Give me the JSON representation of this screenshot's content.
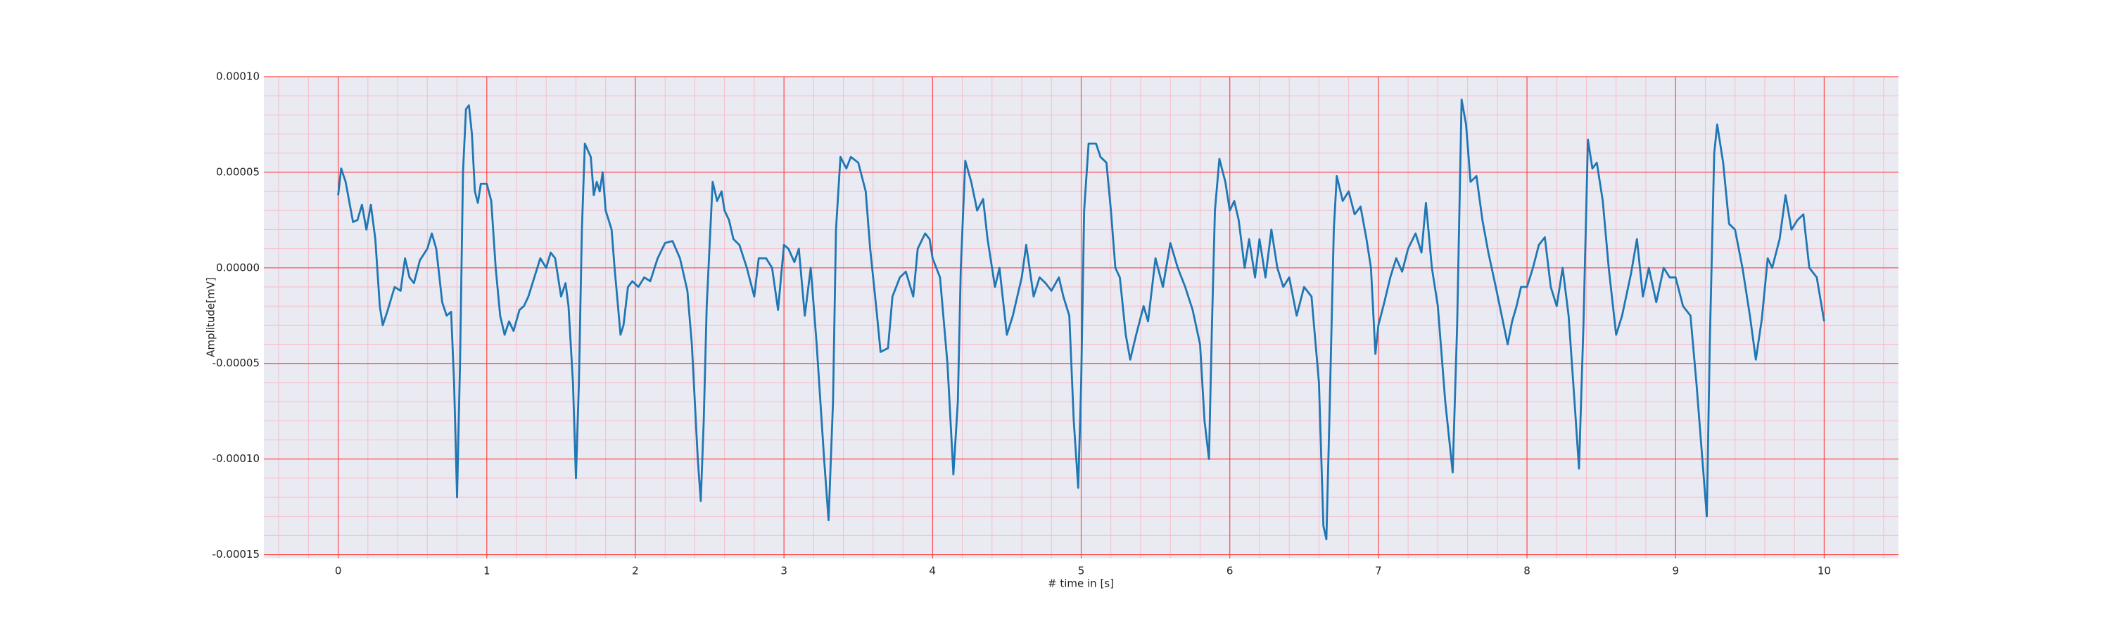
{
  "chart_data": {
    "type": "line",
    "xlabel": "# time in [s]",
    "ylabel": "Amplitude[mV]",
    "xlim": [
      -0.5,
      10.5
    ],
    "ylim": [
      -0.000152,
      0.0001
    ],
    "xticks": [
      0,
      1,
      2,
      3,
      4,
      5,
      6,
      7,
      8,
      9,
      10
    ],
    "yticks": [
      {
        "value": 0.0001,
        "label": "0.00010"
      },
      {
        "value": 5e-05,
        "label": "0.00005"
      },
      {
        "value": 0,
        "label": "0.00000"
      },
      {
        "value": -5e-05,
        "label": "-0.00005"
      },
      {
        "value": -0.0001,
        "label": "-0.00010"
      },
      {
        "value": -0.00015,
        "label": "-0.00015"
      }
    ],
    "grid": true,
    "grid_color": "#ff4a4a",
    "minor_grid": true,
    "minor_grid_color": "#f7bcc8",
    "minor_per_major": 5,
    "background": "#eaeaf2",
    "series": [
      {
        "color": "#1f77b4",
        "x": [
          0,
          0.02,
          0.05,
          0.1,
          0.13,
          0.16,
          0.19,
          0.22,
          0.25,
          0.28,
          0.3,
          0.33,
          0.38,
          0.42,
          0.45,
          0.48,
          0.51,
          0.55,
          0.6,
          0.63,
          0.66,
          0.7,
          0.73,
          0.76,
          0.78,
          0.8,
          0.82,
          0.84,
          0.86,
          0.88,
          0.9,
          0.92,
          0.94,
          0.96,
          1.0,
          1.03,
          1.06,
          1.09,
          1.12,
          1.15,
          1.18,
          1.22,
          1.25,
          1.28,
          1.32,
          1.36,
          1.4,
          1.43,
          1.46,
          1.5,
          1.53,
          1.55,
          1.58,
          1.6,
          1.62,
          1.64,
          1.66,
          1.7,
          1.72,
          1.74,
          1.76,
          1.78,
          1.8,
          1.84,
          1.86,
          1.9,
          1.92,
          1.95,
          1.98,
          2.02,
          2.06,
          2.1,
          2.15,
          2.2,
          2.25,
          2.3,
          2.35,
          2.38,
          2.42,
          2.44,
          2.46,
          2.48,
          2.52,
          2.55,
          2.58,
          2.6,
          2.63,
          2.66,
          2.7,
          2.75,
          2.8,
          2.83,
          2.88,
          2.92,
          2.96,
          3.0,
          3.03,
          3.07,
          3.1,
          3.14,
          3.18,
          3.22,
          3.27,
          3.3,
          3.33,
          3.35,
          3.38,
          3.42,
          3.45,
          3.5,
          3.55,
          3.58,
          3.62,
          3.65,
          3.7,
          3.73,
          3.78,
          3.82,
          3.87,
          3.9,
          3.95,
          3.98,
          4.0,
          4.05,
          4.1,
          4.14,
          4.17,
          4.19,
          4.22,
          4.26,
          4.3,
          4.34,
          4.37,
          4.42,
          4.45,
          4.5,
          4.54,
          4.6,
          4.63,
          4.68,
          4.72,
          4.76,
          4.8,
          4.85,
          4.88,
          4.92,
          4.95,
          4.98,
          5.0,
          5.02,
          5.05,
          5.1,
          5.13,
          5.17,
          5.2,
          5.23,
          5.26,
          5.3,
          5.33,
          5.37,
          5.42,
          5.45,
          5.5,
          5.55,
          5.6,
          5.65,
          5.7,
          5.75,
          5.8,
          5.83,
          5.86,
          5.88,
          5.9,
          5.93,
          5.97,
          6.0,
          6.03,
          6.06,
          6.1,
          6.13,
          6.17,
          6.2,
          6.24,
          6.28,
          6.32,
          6.36,
          6.4,
          6.45,
          6.5,
          6.55,
          6.6,
          6.63,
          6.65,
          6.67,
          6.7,
          6.72,
          6.76,
          6.8,
          6.84,
          6.88,
          6.92,
          6.95,
          6.98,
          7.0,
          7.04,
          7.08,
          7.12,
          7.16,
          7.2,
          7.25,
          7.29,
          7.32,
          7.36,
          7.4,
          7.45,
          7.5,
          7.53,
          7.56,
          7.59,
          7.62,
          7.66,
          7.7,
          7.74,
          7.79,
          7.83,
          7.87,
          7.9,
          7.93,
          7.96,
          8.0,
          8.04,
          8.08,
          8.12,
          8.16,
          8.2,
          8.24,
          8.28,
          8.32,
          8.35,
          8.38,
          8.41,
          8.44,
          8.47,
          8.51,
          8.55,
          8.6,
          8.64,
          8.7,
          8.74,
          8.78,
          8.82,
          8.87,
          8.92,
          8.96,
          9.0,
          9.05,
          9.1,
          9.14,
          9.18,
          9.21,
          9.23,
          9.26,
          9.28,
          9.32,
          9.36,
          9.4,
          9.45,
          9.5,
          9.54,
          9.58,
          9.62,
          9.65,
          9.7,
          9.74,
          9.78,
          9.82,
          9.86,
          9.9,
          9.95,
          10.0
        ],
        "values": [
          3.8e-05,
          5.2e-05,
          4.5e-05,
          2.4e-05,
          2.5e-05,
          3.3e-05,
          2e-05,
          3.3e-05,
          1.5e-05,
          -2e-05,
          -3e-05,
          -2.3e-05,
          -1e-05,
          -1.2e-05,
          5e-06,
          -5e-06,
          -8e-06,
          4e-06,
          1e-05,
          1.8e-05,
          1e-05,
          -1.8e-05,
          -2.5e-05,
          -2.3e-05,
          -6e-05,
          -0.00012,
          -5e-05,
          5e-05,
          8.3e-05,
          8.5e-05,
          7e-05,
          4e-05,
          3.4e-05,
          4.4e-05,
          4.4e-05,
          3.5e-05,
          0,
          -2.5e-05,
          -3.5e-05,
          -2.8e-05,
          -3.3e-05,
          -2.2e-05,
          -2e-05,
          -1.5e-05,
          -5e-06,
          5e-06,
          0,
          8e-06,
          5e-06,
          -1.5e-05,
          -8e-06,
          -2e-05,
          -6e-05,
          -0.00011,
          -6e-05,
          2e-05,
          6.5e-05,
          5.8e-05,
          3.8e-05,
          4.5e-05,
          4e-05,
          5e-05,
          3e-05,
          2e-05,
          0,
          -3.5e-05,
          -3e-05,
          -1e-05,
          -7e-06,
          -1e-05,
          -5e-06,
          -7e-06,
          5e-06,
          1.3e-05,
          1.4e-05,
          5e-06,
          -1.2e-05,
          -4e-05,
          -0.0001,
          -0.000122,
          -8e-05,
          -2e-05,
          4.5e-05,
          3.5e-05,
          4e-05,
          3e-05,
          2.5e-05,
          1.5e-05,
          1.2e-05,
          0,
          -1.5e-05,
          5e-06,
          5e-06,
          0,
          -2.2e-05,
          1.2e-05,
          1e-05,
          3e-06,
          1e-05,
          -2.5e-05,
          0,
          -4e-05,
          -0.0001,
          -0.000132,
          -7e-05,
          2e-05,
          5.8e-05,
          5.2e-05,
          5.8e-05,
          5.5e-05,
          4e-05,
          1e-05,
          -2e-05,
          -4.4e-05,
          -4.2e-05,
          -1.5e-05,
          -5e-06,
          -2e-06,
          -1.5e-05,
          1e-05,
          1.8e-05,
          1.5e-05,
          5e-06,
          -5e-06,
          -5e-05,
          -0.000108,
          -7e-05,
          0,
          5.6e-05,
          4.5e-05,
          3e-05,
          3.6e-05,
          1.5e-05,
          -1e-05,
          0,
          -3.5e-05,
          -2.5e-05,
          -5e-06,
          1.2e-05,
          -1.5e-05,
          -5e-06,
          -8e-06,
          -1.2e-05,
          -5e-06,
          -1.5e-05,
          -2.5e-05,
          -8e-05,
          -0.000115,
          -6e-05,
          3e-05,
          6.5e-05,
          6.5e-05,
          5.8e-05,
          5.5e-05,
          3e-05,
          0,
          -5e-06,
          -3.5e-05,
          -4.8e-05,
          -3.5e-05,
          -2e-05,
          -2.8e-05,
          5e-06,
          -1e-05,
          1.3e-05,
          0,
          -1e-05,
          -2.2e-05,
          -4e-05,
          -8e-05,
          -0.0001,
          -3e-05,
          3e-05,
          5.7e-05,
          4.5e-05,
          3e-05,
          3.5e-05,
          2.5e-05,
          0,
          1.5e-05,
          -5e-06,
          1.5e-05,
          -5e-06,
          2e-05,
          0,
          -1e-05,
          -5e-06,
          -2.5e-05,
          -1e-05,
          -1.5e-05,
          -6e-05,
          -0.000135,
          -0.000142,
          -8e-05,
          2e-05,
          4.8e-05,
          3.5e-05,
          4e-05,
          2.8e-05,
          3.2e-05,
          1.5e-05,
          0,
          -4.5e-05,
          -3e-05,
          -1.8e-05,
          -5e-06,
          5e-06,
          -2e-06,
          1e-05,
          1.8e-05,
          8e-06,
          3.4e-05,
          0,
          -2e-05,
          -7e-05,
          -0.000107,
          -3e-05,
          8.8e-05,
          7.5e-05,
          4.5e-05,
          4.8e-05,
          2.5e-05,
          8e-06,
          -1e-05,
          -2.5e-05,
          -4e-05,
          -2.8e-05,
          -2e-05,
          -1e-05,
          -1e-05,
          0,
          1.2e-05,
          1.6e-05,
          -1e-05,
          -2e-05,
          0,
          -2.5e-05,
          -7e-05,
          -0.000105,
          -3e-05,
          6.7e-05,
          5.2e-05,
          5.5e-05,
          3.5e-05,
          0,
          -3.5e-05,
          -2.5e-05,
          -3e-06,
          1.5e-05,
          -1.5e-05,
          0,
          -1.8e-05,
          0,
          -5e-06,
          -5e-06,
          -2e-05,
          -2.5e-05,
          -6e-05,
          -0.0001,
          -0.00013,
          -4e-05,
          6e-05,
          7.5e-05,
          5.5e-05,
          2.3e-05,
          2e-05,
          0,
          -2.5e-05,
          -4.8e-05,
          -2.7e-05,
          5e-06,
          0,
          1.5e-05,
          3.8e-05,
          2e-05,
          2.5e-05,
          2.8e-05,
          0,
          -5e-06,
          -2.8e-05
        ]
      }
    ]
  }
}
